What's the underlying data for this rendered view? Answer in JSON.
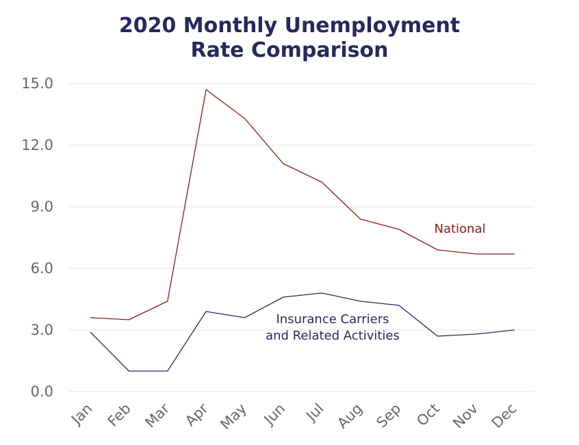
{
  "chart_data": {
    "type": "line",
    "title_lines": [
      "2020 Monthly Unemployment",
      "Rate Comparison"
    ],
    "categories": [
      "Jan",
      "Feb",
      "Mar",
      "Apr",
      "May",
      "Jun",
      "Jul",
      "Aug",
      "Sep",
      "Oct",
      "Nov",
      "Dec"
    ],
    "y_ticks": [
      "0.0",
      "3.0",
      "6.0",
      "9.0",
      "12.0",
      "15.0"
    ],
    "ylim": [
      0,
      15
    ],
    "grid": true,
    "series": [
      {
        "name": "National",
        "label_lines": [
          "National"
        ],
        "color": "#8b1a10",
        "values": [
          3.6,
          3.5,
          4.4,
          14.7,
          13.3,
          11.1,
          10.2,
          8.4,
          7.9,
          6.9,
          6.7,
          6.7
        ]
      },
      {
        "name": "Insurance Carriers and Related Activities",
        "label_lines": [
          "Insurance Carriers",
          "and Related Activities"
        ],
        "color": "#252a5e",
        "values": [
          2.9,
          1.0,
          1.0,
          3.9,
          3.6,
          4.6,
          4.8,
          4.4,
          4.2,
          2.7,
          2.8,
          3.0
        ]
      }
    ]
  }
}
